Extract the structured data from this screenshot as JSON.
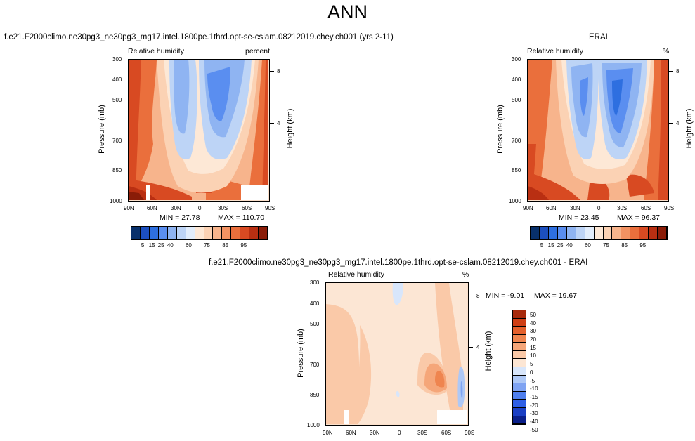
{
  "title": "ANN",
  "colors": {
    "scale_1": [
      "#08306b",
      "#1c4fbf",
      "#2e6fe0",
      "#5a8ef0",
      "#8fb4f2",
      "#bdd4f6",
      "#e2edfb",
      "#fde8d6",
      "#fbd2b4",
      "#f7b48c",
      "#f29262",
      "#ea6f3c",
      "#d84a22",
      "#b92f12",
      "#8a1c08"
    ],
    "scale_2": [
      "#0a1f8a",
      "#1a3fc4",
      "#2e5fe6",
      "#4f7fee",
      "#7fa3f2",
      "#aec8f6",
      "#d8e6fb",
      "#fce6d4",
      "#fac9a8",
      "#f5a679",
      "#ef854f",
      "#e4602c",
      "#cf3f15",
      "#a82a0c"
    ]
  },
  "chart_data": [
    {
      "type": "heatmap",
      "title": "f.e21.F2000climo.ne30pg3_ne30pg3_mg17.intel.1800pe.1thrd.opt-se-cslam.08212019.chey.ch001 (yrs 2-11)",
      "variable": "Relative humidity",
      "units": "percent",
      "xlabel": "",
      "ylabel": "Pressure (mb)",
      "right_label": "Height (km)",
      "x_ticks": [
        "90N",
        "60N",
        "30N",
        "0",
        "30S",
        "60S",
        "90S"
      ],
      "y_ticks": [
        "300",
        "400",
        "500",
        "700",
        "850",
        "1000"
      ],
      "right_ticks": [
        "8",
        "4"
      ],
      "min_text": "MIN = 27.78",
      "max_text": "MAX = 110.70",
      "colorbar_labels": [
        "5",
        "15",
        "25",
        "40",
        "60",
        "75",
        "85",
        "95"
      ]
    },
    {
      "type": "heatmap",
      "title": "ERAI",
      "variable": "Relative humidity",
      "units": "%",
      "xlabel": "",
      "ylabel": "Pressure (mb)",
      "right_label": "Height (km)",
      "x_ticks": [
        "90N",
        "60N",
        "30N",
        "0",
        "30S",
        "60S",
        "90S"
      ],
      "y_ticks": [
        "300",
        "400",
        "500",
        "700",
        "850",
        "1000"
      ],
      "right_ticks": [
        "8",
        "4"
      ],
      "min_text": "MIN = 23.45",
      "max_text": "MAX = 96.37",
      "colorbar_labels": [
        "5",
        "15",
        "25",
        "40",
        "60",
        "75",
        "85",
        "95"
      ]
    },
    {
      "type": "heatmap",
      "title": "f.e21.F2000climo.ne30pg3_ne30pg3_mg17.intel.1800pe.1thrd.opt-se-cslam.08212019.chey.ch001 - ERAI",
      "variable": "Relative humidity",
      "units": "%",
      "xlabel": "",
      "ylabel": "Pressure (mb)",
      "right_label": "Height (km)",
      "x_ticks": [
        "90N",
        "60N",
        "30N",
        "0",
        "30S",
        "60S",
        "90S"
      ],
      "y_ticks": [
        "300",
        "400",
        "500",
        "700",
        "850",
        "1000"
      ],
      "right_ticks": [
        "8",
        "4"
      ],
      "min_text": "MIN = -9.01",
      "max_text": "MAX = 19.67",
      "colorbar_labels": [
        "50",
        "40",
        "30",
        "20",
        "15",
        "10",
        "5",
        "0",
        "-5",
        "-10",
        "-15",
        "-20",
        "-30",
        "-40",
        "-50"
      ]
    }
  ]
}
